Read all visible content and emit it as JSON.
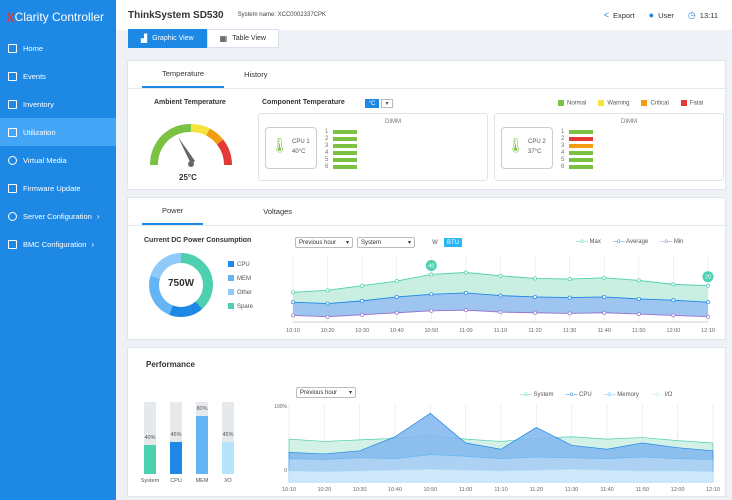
{
  "app": {
    "logo_mark": "X",
    "logo_text": "Clarity Controller"
  },
  "sidebar": {
    "items": [
      {
        "label": "Home",
        "icon": "home-icon"
      },
      {
        "label": "Events",
        "icon": "events-icon"
      },
      {
        "label": "Inventory",
        "icon": "inventory-icon"
      },
      {
        "label": "Utilization",
        "icon": "utilization-icon"
      },
      {
        "label": "Virtual Media",
        "icon": "virtual-media-icon"
      },
      {
        "label": "Firmware Update",
        "icon": "firmware-icon"
      },
      {
        "label": "Server Configuration",
        "icon": "server-config-icon"
      },
      {
        "label": "BMC Configuration",
        "icon": "bmc-config-icon"
      }
    ]
  },
  "header": {
    "system": "ThinkSystem SD530",
    "system_name": "System name: XCC0002337CPK",
    "export": "Export",
    "user": "User",
    "time": "13:11"
  },
  "views": {
    "graphic": "Graphic View",
    "table": "Table View"
  },
  "temperature": {
    "tabs": [
      "Temperature",
      "History"
    ],
    "ambient_title": "Ambient Temperature",
    "ambient_value": "25°C",
    "component_title": "Component Temperature",
    "unit_selected": "°C",
    "legend": [
      {
        "label": "Normal",
        "color": "#7cc242"
      },
      {
        "label": "Warning",
        "color": "#f3e33b"
      },
      {
        "label": "Critical",
        "color": "#f39c12"
      },
      {
        "label": "Fatal",
        "color": "#e53935"
      }
    ],
    "cpus": [
      {
        "name": "CPU 1",
        "temp": "40°C",
        "dimm_label": "DIMM",
        "slots": [
          "1",
          "2",
          "3",
          "4",
          "5",
          "6"
        ]
      },
      {
        "name": "CPU 2",
        "temp": "37°C",
        "dimm_label": "DIMM",
        "slots": [
          "1",
          "2",
          "3",
          "4",
          "5",
          "6"
        ]
      }
    ]
  },
  "power": {
    "tabs": [
      "Power",
      "Voltages"
    ],
    "consumption_title": "Current DC Power Consumption",
    "total": "750W",
    "period_select": "Previous hour",
    "source_select": "System",
    "unit_options": [
      "W",
      "BTU"
    ],
    "breakdown": [
      {
        "label": "CPU",
        "color": "#1e88e5"
      },
      {
        "label": "MEM",
        "color": "#64b5f6"
      },
      {
        "label": "Other",
        "color": "#90caf9"
      },
      {
        "label": "Spare",
        "color": "#4dd0b0"
      }
    ],
    "legend": [
      "Max",
      "Average",
      "Min"
    ],
    "markers": [
      "40",
      "20"
    ]
  },
  "performance": {
    "title": "Performance",
    "period_select": "Previous hour",
    "legend": [
      "System",
      "CPU",
      "Memory",
      "I/O"
    ],
    "bars": [
      {
        "label": "System",
        "pct": "40%",
        "value": 0.4,
        "color": "#4dd0b0"
      },
      {
        "label": "CPU",
        "pct": "45%",
        "value": 0.45,
        "color": "#1e88e5"
      },
      {
        "label": "MEM",
        "pct": "80%",
        "value": 0.8,
        "color": "#64b5f6"
      },
      {
        "label": "I/O",
        "pct": "45%",
        "value": 0.45,
        "color": "#b3e5fc"
      }
    ],
    "yaxis": [
      "100%",
      "0"
    ]
  },
  "chart_data": [
    {
      "type": "area",
      "title": "",
      "x": [
        "10:10",
        "10:20",
        "10:30",
        "10:40",
        "10:50",
        "11:00",
        "11:10",
        "11:20",
        "11:30",
        "11:40",
        "11:50",
        "12:00",
        "12:10"
      ],
      "series": [
        {
          "name": "Max",
          "values": [
            45,
            48,
            55,
            62,
            72,
            75,
            70,
            66,
            65,
            67,
            63,
            57,
            55
          ]
        },
        {
          "name": "Average",
          "values": [
            30,
            28,
            32,
            38,
            42,
            44,
            40,
            38,
            37,
            38,
            35,
            33,
            30
          ]
        },
        {
          "name": "Min",
          "values": [
            10,
            8,
            11,
            14,
            17,
            18,
            15,
            14,
            13,
            14,
            12,
            10,
            8
          ]
        }
      ],
      "ylim": [
        0,
        100
      ]
    },
    {
      "type": "area",
      "title": "",
      "x": [
        "10:10",
        "10:20",
        "10:30",
        "10:40",
        "10:50",
        "11:00",
        "11:10",
        "11:20",
        "11:30",
        "11:40",
        "11:50",
        "12:00",
        "12:10"
      ],
      "series": [
        {
          "name": "System",
          "values": [
            55,
            52,
            54,
            56,
            60,
            55,
            52,
            56,
            58,
            55,
            57,
            53,
            50
          ]
        },
        {
          "name": "CPU",
          "values": [
            38,
            36,
            40,
            58,
            88,
            50,
            42,
            70,
            47,
            42,
            50,
            44,
            40
          ]
        },
        {
          "name": "Memory",
          "values": [
            30,
            29,
            31,
            30,
            35,
            33,
            30,
            32,
            31,
            30,
            32,
            30,
            29
          ]
        },
        {
          "name": "I/O",
          "values": [
            14,
            13,
            14,
            15,
            16,
            15,
            14,
            15,
            16,
            15,
            14,
            14,
            13
          ]
        }
      ],
      "ylim": [
        0,
        100
      ]
    }
  ]
}
